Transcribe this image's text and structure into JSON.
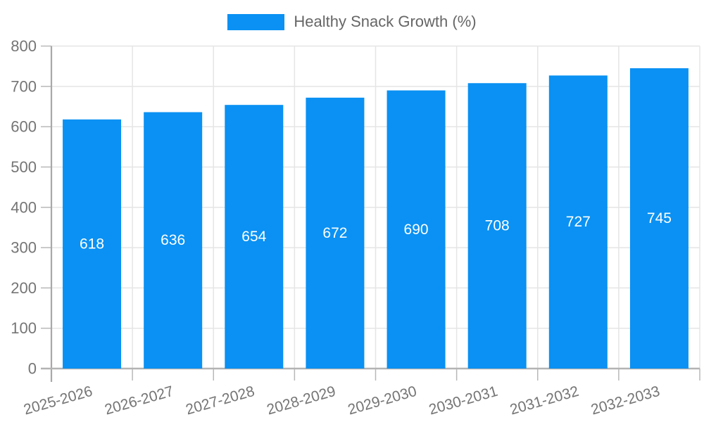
{
  "chart_data": {
    "type": "bar",
    "title": "",
    "legend": "Healthy Snack Growth (%)",
    "legend_position": "top",
    "categories": [
      "2025-2026",
      "2026-2027",
      "2027-2028",
      "2028-2029",
      "2029-2030",
      "2030-2031",
      "2031-2032",
      "2032-2033"
    ],
    "values": [
      618,
      636,
      654,
      672,
      690,
      708,
      727,
      745
    ],
    "xlabel": "",
    "ylabel": "",
    "ylim": [
      0,
      800
    ],
    "ytick_step": 100,
    "ytick_labels": [
      "0",
      "100",
      "200",
      "300",
      "400",
      "500",
      "600",
      "700",
      "800"
    ],
    "grid": true,
    "colors": {
      "bar": "#0a91f3",
      "axis_text": "#757575",
      "legend_text": "#666666",
      "grid_line": "#e5e5e5",
      "tick_mark": "#b8b8b8",
      "y_axis_line": "#a8a8a8",
      "x_axis_line": "#b3b3b3",
      "value_label": "#ffffff",
      "background": "#ffffff"
    }
  }
}
